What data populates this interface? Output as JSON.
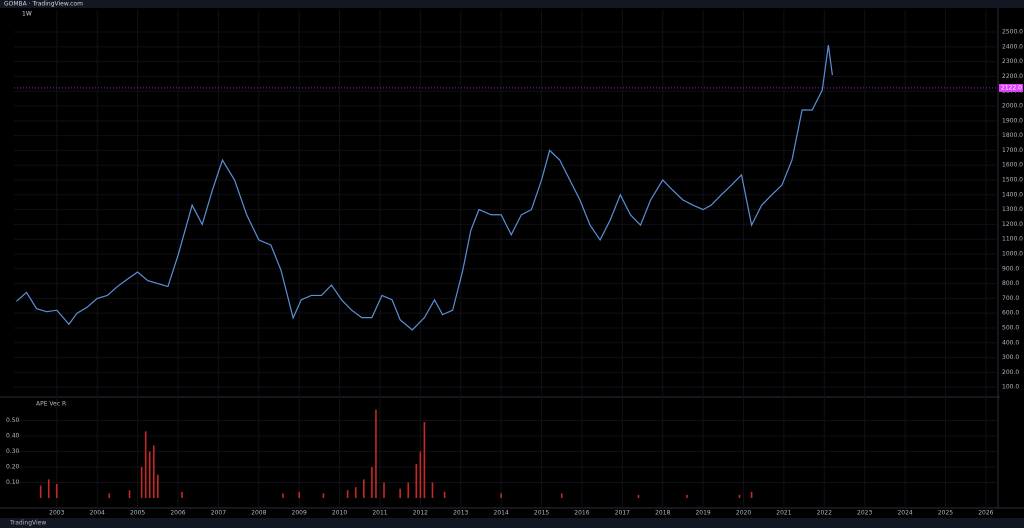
{
  "header": {
    "title": "GOMBA · TradingView.com",
    "subtitle": "1W"
  },
  "footer": {
    "brand": "TradingView"
  },
  "chart_data": [
    {
      "type": "line",
      "color": "#5b8fd6",
      "x": [
        2002.0,
        2002.25,
        2002.5,
        2002.75,
        2003.0,
        2003.3,
        2003.5,
        2003.75,
        2004.0,
        2004.25,
        2004.5,
        2004.75,
        2005.0,
        2005.25,
        2005.5,
        2005.75,
        2006.0,
        2006.35,
        2006.6,
        2006.85,
        2007.1,
        2007.4,
        2007.7,
        2008.0,
        2008.3,
        2008.55,
        2008.85,
        2009.05,
        2009.3,
        2009.55,
        2009.8,
        2010.05,
        2010.3,
        2010.55,
        2010.8,
        2011.05,
        2011.3,
        2011.5,
        2011.8,
        2012.1,
        2012.35,
        2012.55,
        2012.8,
        2013.05,
        2013.25,
        2013.45,
        2013.75,
        2014.0,
        2014.25,
        2014.5,
        2014.75,
        2015.0,
        2015.2,
        2015.45,
        2015.7,
        2015.95,
        2016.2,
        2016.45,
        2016.7,
        2016.95,
        2017.2,
        2017.45,
        2017.7,
        2018.0,
        2018.25,
        2018.5,
        2018.75,
        2019.0,
        2019.2,
        2019.45,
        2019.7,
        2019.95,
        2020.2,
        2020.45,
        2020.7,
        2020.95,
        2021.2,
        2021.45,
        2021.7,
        2021.95,
        2022.1,
        2022.2
      ],
      "values": [
        680,
        740,
        630,
        610,
        620,
        525,
        600,
        640,
        700,
        720,
        780,
        830,
        878,
        820,
        800,
        780,
        990,
        1330,
        1200,
        1430,
        1635,
        1500,
        1265,
        1095,
        1060,
        890,
        568,
        690,
        720,
        720,
        790,
        690,
        620,
        570,
        570,
        720,
        690,
        555,
        487,
        570,
        690,
        590,
        620,
        890,
        1160,
        1300,
        1265,
        1265,
        1130,
        1265,
        1300,
        1500,
        1700,
        1635,
        1500,
        1365,
        1195,
        1095,
        1230,
        1400,
        1265,
        1195,
        1365,
        1500,
        1430,
        1365,
        1330,
        1300,
        1330,
        1400,
        1465,
        1535,
        1195,
        1330,
        1400,
        1465,
        1635,
        1973,
        1973,
        2108,
        2412,
        2209
      ],
      "xlim": [
        2001.94,
        2026.3
      ],
      "ylim": [
        47,
        2649
      ],
      "xticks": [
        2003,
        2004,
        2005,
        2006,
        2007,
        2008,
        2009,
        2010,
        2011,
        2012,
        2013,
        2014,
        2015,
        2016,
        2017,
        2018,
        2019,
        2020,
        2021,
        2022,
        2023,
        2024,
        2025,
        2026
      ],
      "yticks": [
        {
          "value": 100,
          "label": "100.0"
        },
        {
          "value": 200,
          "label": "200.0"
        },
        {
          "value": 300,
          "label": "300.0"
        },
        {
          "value": 400,
          "label": "400.0"
        },
        {
          "value": 500,
          "label": "500.0"
        },
        {
          "value": 600,
          "label": "600.0"
        },
        {
          "value": 700,
          "label": "700.0"
        },
        {
          "value": 800,
          "label": "800.0"
        },
        {
          "value": 900,
          "label": "900.0"
        },
        {
          "value": 1000,
          "label": "1000.0"
        },
        {
          "value": 1100,
          "label": "1100.0"
        },
        {
          "value": 1200,
          "label": "1200.0"
        },
        {
          "value": 1300,
          "label": "1300.0"
        },
        {
          "value": 1400,
          "label": "1400.0"
        },
        {
          "value": 1500,
          "label": "1500.0"
        },
        {
          "value": 1600,
          "label": "1600.0"
        },
        {
          "value": 1700,
          "label": "1700.0"
        },
        {
          "value": 1800,
          "label": "1800.0"
        },
        {
          "value": 1900,
          "label": "1900.0"
        },
        {
          "value": 2000,
          "label": "2000.0"
        },
        {
          "value": 2100,
          "label": "2100.0"
        },
        {
          "value": 2200,
          "label": "2200.0"
        },
        {
          "value": 2300,
          "label": "2300.0"
        },
        {
          "value": 2400,
          "label": "2400.0"
        },
        {
          "value": 2500,
          "label": "2500.0"
        }
      ],
      "last_price": {
        "value": 2122,
        "label": "2122.0",
        "color": "#e040fb"
      }
    },
    {
      "type": "bar",
      "title": "APE Vec R",
      "color": "#c62828",
      "x": [
        2002.6,
        2002.8,
        2003.0,
        2004.3,
        2004.8,
        2005.1,
        2005.2,
        2005.3,
        2005.4,
        2005.5,
        2006.1,
        2008.6,
        2009.0,
        2009.6,
        2010.2,
        2010.4,
        2010.6,
        2010.8,
        2010.9,
        2011.1,
        2011.5,
        2011.7,
        2011.9,
        2012.0,
        2012.1,
        2012.3,
        2012.6,
        2014.0,
        2015.5,
        2017.4,
        2018.6,
        2019.9,
        2020.2
      ],
      "values": [
        0.08,
        0.12,
        0.09,
        0.03,
        0.05,
        0.2,
        0.43,
        0.3,
        0.34,
        0.15,
        0.04,
        0.03,
        0.04,
        0.03,
        0.05,
        0.07,
        0.12,
        0.2,
        0.57,
        0.1,
        0.06,
        0.1,
        0.22,
        0.3,
        0.49,
        0.1,
        0.04,
        0.03,
        0.03,
        0.02,
        0.02,
        0.02,
        0.04
      ],
      "xlim": [
        2001.94,
        2026.3
      ],
      "ylim": [
        0,
        0.6
      ],
      "yticks": [
        {
          "value": 0.1,
          "label": "0.10"
        },
        {
          "value": 0.2,
          "label": "0.20"
        },
        {
          "value": 0.3,
          "label": "0.30"
        },
        {
          "value": 0.4,
          "label": "0.40"
        },
        {
          "value": 0.5,
          "label": "0.50"
        }
      ]
    }
  ]
}
